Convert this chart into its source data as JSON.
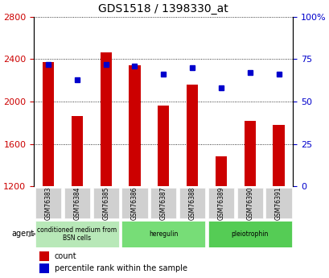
{
  "title": "GDS1518 / 1398330_at",
  "categories": [
    "GSM76383",
    "GSM76384",
    "GSM76385",
    "GSM76386",
    "GSM76387",
    "GSM76388",
    "GSM76389",
    "GSM76390",
    "GSM76391"
  ],
  "count_values": [
    2370,
    1860,
    2460,
    2340,
    1960,
    2160,
    1480,
    1820,
    1780
  ],
  "percentile_values": [
    72,
    63,
    72,
    71,
    66,
    70,
    58,
    67,
    66
  ],
  "ylim_left": [
    1200,
    2800
  ],
  "ylim_right": [
    0,
    100
  ],
  "yticks_left": [
    1200,
    1600,
    2000,
    2400,
    2800
  ],
  "yticks_right": [
    0,
    25,
    50,
    75,
    100
  ],
  "bar_color": "#cc0000",
  "dot_color": "#0000cc",
  "groups": [
    {
      "label": "conditioned medium from\nBSN cells",
      "start": 0,
      "end": 3,
      "color": "#ccffcc"
    },
    {
      "label": "heregulin",
      "start": 3,
      "end": 6,
      "color": "#99ee99"
    },
    {
      "label": "pleiotrophin",
      "start": 6,
      "end": 9,
      "color": "#66dd66"
    }
  ],
  "agent_label": "agent",
  "legend_count_label": "count",
  "legend_pct_label": "percentile rank within the sample",
  "grid_color": "#000000",
  "background_color": "#f0f0f0",
  "plot_bg": "#ffffff"
}
